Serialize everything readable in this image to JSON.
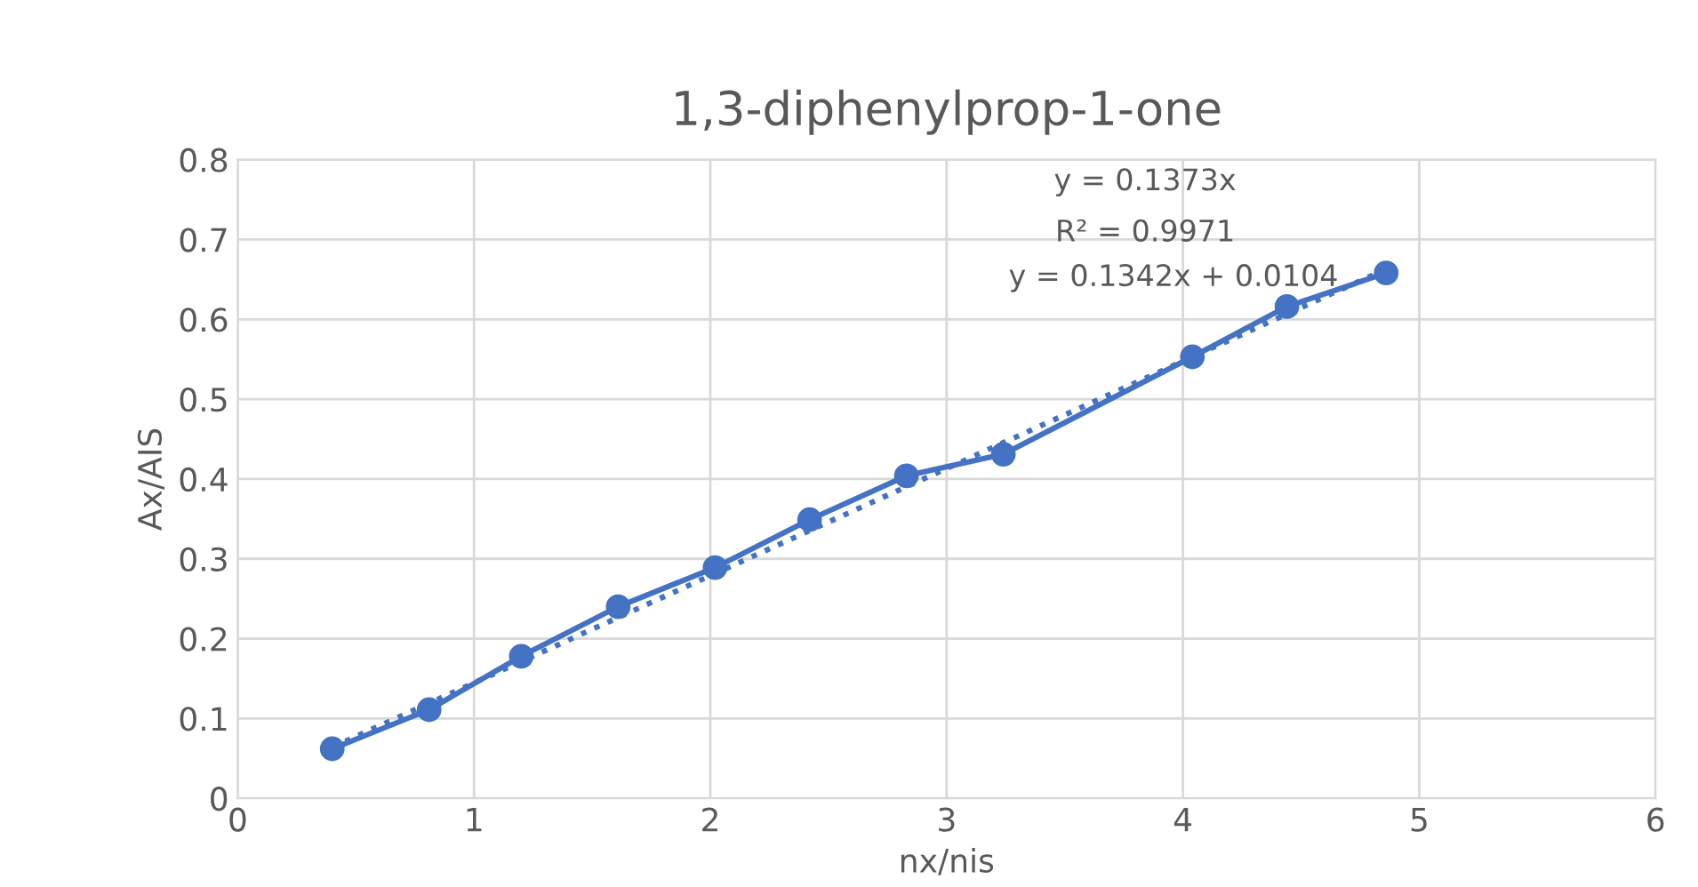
{
  "chart_data": {
    "type": "line",
    "title": "1,3-diphenylprop-1-one",
    "xlabel": "nx/nis",
    "ylabel": "Ax/AIS",
    "xlim": [
      0,
      6
    ],
    "xticks": [
      0,
      1,
      2,
      3,
      4,
      5,
      6
    ],
    "ylim": [
      0,
      0.8
    ],
    "yticks": [
      0,
      0.1,
      0.2,
      0.3,
      0.4,
      0.5,
      0.6,
      0.7,
      0.8
    ],
    "grid": true,
    "legend": false,
    "series": [
      {
        "color": "#4472c4",
        "marker": "circle",
        "line_style": "solid",
        "x": [
          0.4,
          0.81,
          1.2,
          1.61,
          2.02,
          2.42,
          2.83,
          3.24,
          4.04,
          4.44,
          4.86
        ],
        "values": [
          0.062,
          0.111,
          0.178,
          0.24,
          0.289,
          0.349,
          0.404,
          0.431,
          0.553,
          0.616,
          0.658
        ]
      },
      {
        "type": "line",
        "color": "#4472c4",
        "marker": "none",
        "line_style": "dotted",
        "x": [
          0.4,
          4.86
        ],
        "values": [
          0.064,
          0.663
        ]
      }
    ],
    "annotations": [
      "y = 0.1373x",
      "R² = 0.9971",
      "y = 0.1342x + 0.0104"
    ]
  }
}
